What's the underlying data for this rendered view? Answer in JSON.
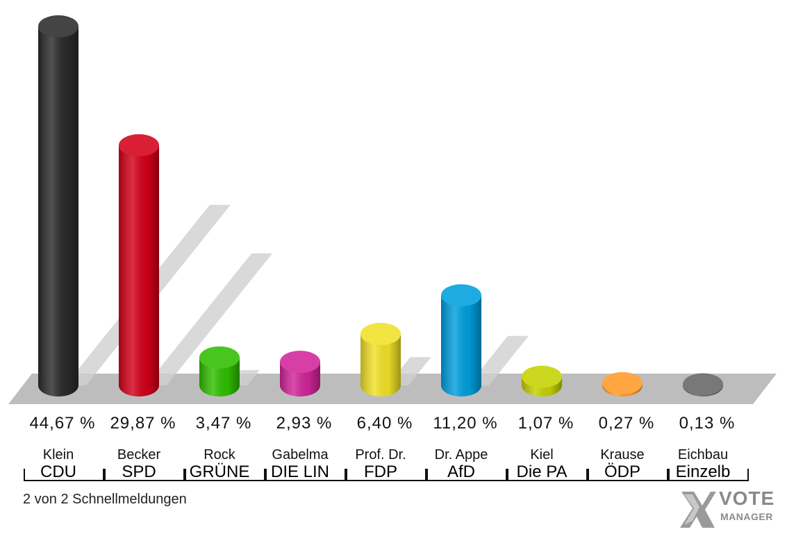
{
  "chart_data": {
    "type": "bar",
    "categories": [
      "CDU",
      "SPD",
      "GRÜNE",
      "DIE LIN",
      "FDP",
      "AfD",
      "Die PA",
      "ÖDP",
      "Einzelb"
    ],
    "candidates": [
      "Klein",
      "Becker",
      "Rock",
      "Gabelma",
      "Prof. Dr.",
      "Dr. Appe",
      "Kiel",
      "Krause",
      "Eichbau"
    ],
    "values": [
      44.67,
      29.87,
      3.47,
      2.93,
      6.4,
      11.2,
      1.07,
      0.27,
      0.13
    ],
    "value_labels": [
      "44,67 %",
      "29,87 %",
      "3,47 %",
      "2,93 %",
      "6,40 %",
      "11,20 %",
      "1,07 %",
      "0,27 %",
      "0,13 %"
    ],
    "colors": [
      "#2b2b2b",
      "#d40019",
      "#2fbf00",
      "#d2259a",
      "#f1e228",
      "#009fdf",
      "#c5d200",
      "#ff9a28",
      "#666666"
    ],
    "ylim": [
      0,
      44.67
    ],
    "grid": false
  },
  "footer": {
    "text": "2 von 2 Schnellmeldungen"
  },
  "logo": {
    "word": "VOTE",
    "sub": "MANAGER",
    "icon": "x-mark-icon"
  }
}
